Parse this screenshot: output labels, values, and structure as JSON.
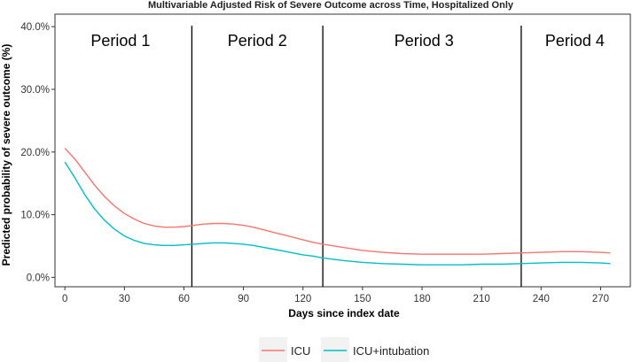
{
  "chart_data": {
    "type": "line",
    "title": "Multivariable Adjusted Risk of Severe Outcome across Time, Hospitalized Only",
    "xlabel": "Days since index date",
    "ylabel": "Predicted probability of severe outcome (%)",
    "xlim": [
      -5,
      285
    ],
    "ylim": [
      -1.5,
      42
    ],
    "xticks": [
      0,
      30,
      60,
      90,
      120,
      150,
      180,
      210,
      240,
      270
    ],
    "xtick_labels": [
      "0",
      "30",
      "60",
      "90",
      "120",
      "150",
      "180",
      "210",
      "240",
      "270"
    ],
    "yticks": [
      0,
      10,
      20,
      30,
      40
    ],
    "ytick_labels": [
      "0.0%",
      "10.0%",
      "20.0%",
      "30.0%",
      "40.0%"
    ],
    "grid": false,
    "legend_position": "bottom",
    "period_boundaries": [
      64,
      130,
      230
    ],
    "periods": [
      {
        "label": "Period 1",
        "x": 28
      },
      {
        "label": "Period 2",
        "x": 97
      },
      {
        "label": "Period 3",
        "x": 181
      },
      {
        "label": "Period 4",
        "x": 257
      }
    ],
    "series": [
      {
        "name": "ICU",
        "color": "#f8766d",
        "x": [
          0,
          5,
          10,
          15,
          20,
          25,
          30,
          35,
          40,
          45,
          50,
          55,
          60,
          65,
          70,
          75,
          80,
          85,
          90,
          95,
          100,
          105,
          110,
          115,
          120,
          125,
          130,
          140,
          150,
          160,
          170,
          180,
          190,
          200,
          210,
          220,
          230,
          240,
          250,
          260,
          270,
          275
        ],
        "values": [
          20.6,
          18.9,
          16.8,
          14.7,
          12.9,
          11.4,
          10.2,
          9.3,
          8.6,
          8.2,
          8.0,
          8.0,
          8.1,
          8.3,
          8.5,
          8.6,
          8.6,
          8.5,
          8.3,
          8.0,
          7.6,
          7.2,
          6.8,
          6.4,
          6.0,
          5.6,
          5.3,
          4.8,
          4.3,
          4.0,
          3.8,
          3.7,
          3.7,
          3.7,
          3.7,
          3.8,
          3.9,
          4.0,
          4.1,
          4.1,
          4.0,
          3.9
        ]
      },
      {
        "name": "ICU+intubation",
        "color": "#00bfc4",
        "x": [
          0,
          5,
          10,
          15,
          20,
          25,
          30,
          35,
          40,
          45,
          50,
          55,
          60,
          65,
          70,
          75,
          80,
          85,
          90,
          95,
          100,
          105,
          110,
          115,
          120,
          125,
          130,
          140,
          150,
          160,
          170,
          180,
          190,
          200,
          210,
          220,
          230,
          240,
          250,
          260,
          270,
          275
        ],
        "values": [
          18.4,
          15.9,
          13.2,
          10.9,
          9.1,
          7.7,
          6.6,
          5.9,
          5.4,
          5.2,
          5.1,
          5.1,
          5.2,
          5.3,
          5.4,
          5.5,
          5.5,
          5.4,
          5.3,
          5.1,
          4.8,
          4.5,
          4.2,
          3.9,
          3.6,
          3.4,
          3.1,
          2.7,
          2.4,
          2.2,
          2.1,
          2.0,
          2.0,
          2.0,
          2.1,
          2.1,
          2.2,
          2.3,
          2.4,
          2.4,
          2.3,
          2.2
        ]
      }
    ]
  }
}
